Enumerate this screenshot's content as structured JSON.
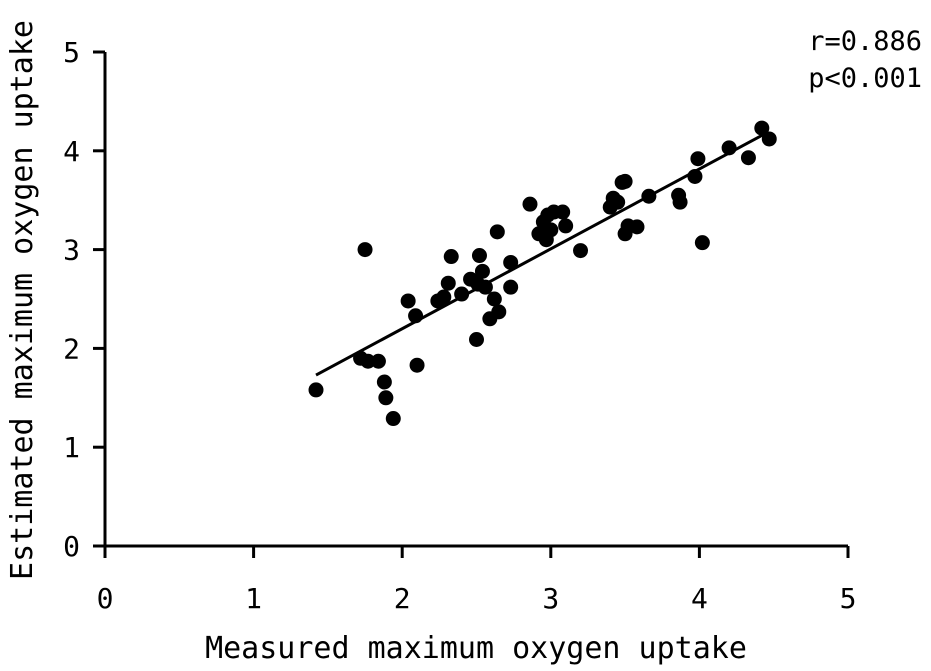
{
  "chart_data": {
    "type": "scatter",
    "xlabel": "Measured maximum oxygen uptake",
    "ylabel": "Estimated maximum oxygen uptake",
    "xlim": [
      0,
      5
    ],
    "ylim": [
      0,
      5
    ],
    "xticks": [
      "0",
      "1",
      "2",
      "3",
      "4",
      "5"
    ],
    "yticks": [
      "0",
      "1",
      "2",
      "3",
      "4",
      "5"
    ],
    "grid": false,
    "stats": {
      "r_label": "r=0.886",
      "p_label": "p<0.001"
    },
    "fit_line": {
      "x": [
        1.42,
        4.45
      ],
      "y": [
        1.73,
        4.18
      ]
    },
    "points": [
      [
        1.42,
        1.58
      ],
      [
        1.75,
        3.0
      ],
      [
        1.72,
        1.9
      ],
      [
        1.77,
        1.87
      ],
      [
        1.84,
        1.87
      ],
      [
        1.88,
        1.66
      ],
      [
        1.89,
        1.5
      ],
      [
        1.94,
        1.29
      ],
      [
        2.04,
        2.48
      ],
      [
        2.09,
        2.33
      ],
      [
        2.1,
        1.83
      ],
      [
        2.24,
        2.48
      ],
      [
        2.28,
        2.52
      ],
      [
        2.31,
        2.66
      ],
      [
        2.33,
        2.93
      ],
      [
        2.4,
        2.55
      ],
      [
        2.46,
        2.7
      ],
      [
        2.5,
        2.09
      ],
      [
        2.51,
        2.65
      ],
      [
        2.52,
        2.94
      ],
      [
        2.54,
        2.78
      ],
      [
        2.56,
        2.62
      ],
      [
        2.59,
        2.3
      ],
      [
        2.62,
        2.5
      ],
      [
        2.64,
        3.18
      ],
      [
        2.65,
        2.37
      ],
      [
        2.73,
        2.62
      ],
      [
        2.73,
        2.87
      ],
      [
        2.86,
        3.46
      ],
      [
        2.92,
        3.16
      ],
      [
        2.95,
        3.28
      ],
      [
        2.97,
        3.1
      ],
      [
        2.98,
        3.35
      ],
      [
        3.0,
        3.2
      ],
      [
        3.02,
        3.38
      ],
      [
        3.08,
        3.38
      ],
      [
        3.1,
        3.24
      ],
      [
        3.2,
        2.99
      ],
      [
        3.4,
        3.43
      ],
      [
        3.42,
        3.52
      ],
      [
        3.45,
        3.48
      ],
      [
        3.48,
        3.68
      ],
      [
        3.5,
        3.69
      ],
      [
        3.5,
        3.16
      ],
      [
        3.52,
        3.24
      ],
      [
        3.58,
        3.23
      ],
      [
        3.66,
        3.54
      ],
      [
        3.86,
        3.55
      ],
      [
        3.87,
        3.48
      ],
      [
        3.97,
        3.74
      ],
      [
        3.99,
        3.92
      ],
      [
        4.02,
        3.07
      ],
      [
        4.2,
        4.03
      ],
      [
        4.33,
        3.93
      ],
      [
        4.42,
        4.23
      ],
      [
        4.47,
        4.12
      ]
    ]
  }
}
